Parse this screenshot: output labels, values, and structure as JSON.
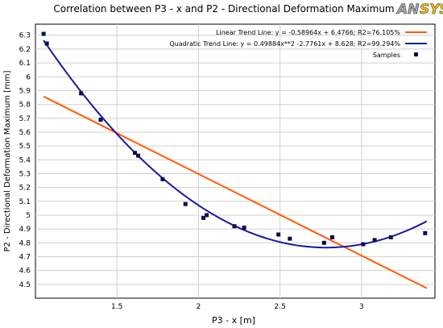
{
  "brand": {
    "logo_text": "ANSYS",
    "logo_colors": {
      "left": "#a8a8a8",
      "right": "#f5c400",
      "outline": "#333333"
    }
  },
  "chart_data": {
    "type": "scatter",
    "title": "Correlation between P3 - x and P2 - Directional Deformation Maximum",
    "xlabel": "P3 - x  [m]",
    "ylabel": "P2 - Directional Deformation Maximum  [mm]",
    "xlim": [
      1.0,
      3.45
    ],
    "ylim": [
      4.4,
      6.38
    ],
    "x_ticks": [
      1.5,
      2,
      2.5,
      3
    ],
    "x_tick_labels": [
      "1.5",
      "2",
      "2.5",
      "3"
    ],
    "y_ticks": [
      4.5,
      4.6,
      4.7,
      4.8,
      4.9,
      5,
      5.1,
      5.2,
      5.3,
      5.4,
      5.5,
      5.6,
      5.7,
      5.8,
      5.9,
      6,
      6.1,
      6.2,
      6.3
    ],
    "y_tick_labels": [
      "4.5",
      "4.6",
      "4.7",
      "4.8",
      "4.9",
      "5",
      "5.1",
      "5.2",
      "5.3",
      "5.4",
      "5.5",
      "5.6",
      "5.7",
      "5.8",
      "5.9",
      "6",
      "6.1",
      "6.2",
      "6.3"
    ],
    "grid": true,
    "legend_position": "top-right",
    "series": [
      {
        "name": "Linear Trend Line: y = -0.58964x + 6.4766; R2=76.105%",
        "kind": "line",
        "color": "#ff5a00",
        "coefficients": {
          "a": -0.58964,
          "b": 6.4766
        },
        "x_range": [
          1.05,
          3.4
        ]
      },
      {
        "name": "Quadratic Trend Line: y = 0.49884x**2 -2.7761x + 8.628; R2=99.294%",
        "kind": "line",
        "color": "#1a1a9c",
        "coefficients": {
          "a": 0.49884,
          "b": -2.7761,
          "c": 8.628
        },
        "x_range": [
          1.05,
          3.4
        ]
      },
      {
        "name": "Samples",
        "kind": "scatter",
        "color": "#0d0d4d",
        "points": [
          {
            "x": 1.05,
            "y": 6.31
          },
          {
            "x": 1.07,
            "y": 6.24
          },
          {
            "x": 1.28,
            "y": 5.88
          },
          {
            "x": 1.4,
            "y": 5.69
          },
          {
            "x": 1.61,
            "y": 5.45
          },
          {
            "x": 1.63,
            "y": 5.43
          },
          {
            "x": 1.78,
            "y": 5.26
          },
          {
            "x": 1.92,
            "y": 5.08
          },
          {
            "x": 2.03,
            "y": 4.98
          },
          {
            "x": 2.05,
            "y": 5.0
          },
          {
            "x": 2.22,
            "y": 4.92
          },
          {
            "x": 2.28,
            "y": 4.91
          },
          {
            "x": 2.49,
            "y": 4.86
          },
          {
            "x": 2.56,
            "y": 4.83
          },
          {
            "x": 2.77,
            "y": 4.8
          },
          {
            "x": 2.82,
            "y": 4.84
          },
          {
            "x": 3.01,
            "y": 4.79
          },
          {
            "x": 3.08,
            "y": 4.82
          },
          {
            "x": 3.18,
            "y": 4.84
          },
          {
            "x": 3.39,
            "y": 4.87
          }
        ]
      }
    ]
  }
}
